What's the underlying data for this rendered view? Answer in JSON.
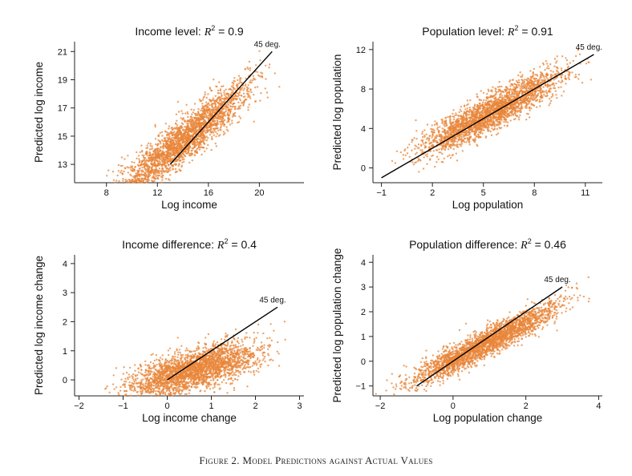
{
  "figure": {
    "caption": "Figure 2. Model Predictions against Actual Values"
  },
  "point_color": "#E8863A",
  "line_color": "#000000",
  "chart_data": [
    {
      "type": "scatter",
      "title_prefix": "Income level: ",
      "r2_symbol": "R",
      "r2_sup": "2",
      "r2_value": "= 0.9",
      "xlabel": "Log income",
      "ylabel": "Predicted log income",
      "xlim": [
        5.5,
        23.5
      ],
      "ylim": [
        11.7,
        21.7
      ],
      "xticks": [
        8,
        12,
        16,
        20
      ],
      "yticks": [
        13,
        15,
        17,
        19,
        21
      ],
      "xtick_labels": [
        "8",
        "12",
        "16",
        "20"
      ],
      "ytick_labels": [
        "13",
        "15",
        "17",
        "19",
        "21"
      ],
      "reference_line": {
        "label": "45 deg.",
        "x": [
          13,
          21
        ],
        "y": [
          13,
          21
        ]
      },
      "cloud": {
        "x_min": 6.5,
        "x_max": 21.5,
        "slope": 0.72,
        "intercept": 4.6,
        "spread": 0.8,
        "points": 2600
      }
    },
    {
      "type": "scatter",
      "title_prefix": "Population level: ",
      "r2_symbol": "R",
      "r2_sup": "2",
      "r2_value": "= 0.91",
      "xlabel": "Log population",
      "ylabel": "Predicted log population",
      "xlim": [
        -1.5,
        12
      ],
      "ylim": [
        -1.5,
        12.8
      ],
      "xticks": [
        -1,
        2,
        5,
        8,
        11
      ],
      "yticks": [
        0,
        4,
        8,
        12
      ],
      "xtick_labels": [
        "−1",
        "2",
        "5",
        "8",
        "11"
      ],
      "ytick_labels": [
        "0",
        "4",
        "8",
        "12"
      ],
      "reference_line": {
        "label": "45 deg.",
        "x": [
          -1,
          11.5
        ],
        "y": [
          -1,
          11.5
        ]
      },
      "cloud": {
        "x_min": -0.5,
        "x_max": 11.5,
        "slope": 0.9,
        "intercept": 0.7,
        "spread": 0.9,
        "points": 2600
      }
    },
    {
      "type": "scatter",
      "title_prefix": "Income difference: ",
      "r2_symbol": "R",
      "r2_sup": "2",
      "r2_value": "= 0.4",
      "xlabel": "Log income change",
      "ylabel": "Predicted log income change",
      "xlim": [
        -2.1,
        3.1
      ],
      "ylim": [
        -0.55,
        4.3
      ],
      "xticks": [
        -2,
        -1,
        0,
        1,
        2,
        3
      ],
      "yticks": [
        0,
        1,
        2,
        3,
        4
      ],
      "xtick_labels": [
        "−2",
        "−1",
        "0",
        "1",
        "2",
        "3"
      ],
      "ytick_labels": [
        "0",
        "1",
        "2",
        "3",
        "4"
      ],
      "reference_line": {
        "label": "45 deg.",
        "x": [
          0,
          2.5
        ],
        "y": [
          0,
          2.5
        ]
      },
      "cloud": {
        "x_min": -1.5,
        "x_max": 2.8,
        "slope": 0.4,
        "intercept": 0.1,
        "spread": 0.35,
        "points": 2600
      }
    },
    {
      "type": "scatter",
      "title_prefix": "Population difference: ",
      "r2_symbol": "R",
      "r2_sup": "2",
      "r2_value": "= 0.46",
      "xlabel": "Log population change",
      "ylabel": "Predicted log population change",
      "xlim": [
        -2.2,
        4.1
      ],
      "ylim": [
        -1.4,
        4.3
      ],
      "xticks": [
        -2,
        0,
        2,
        4
      ],
      "yticks": [
        -1,
        0,
        1,
        2,
        3,
        4
      ],
      "xtick_labels": [
        "−2",
        "0",
        "2",
        "4"
      ],
      "ytick_labels": [
        "−1",
        "0",
        "1",
        "2",
        "3",
        "4"
      ],
      "reference_line": {
        "label": "45 deg.",
        "x": [
          -1,
          3
        ],
        "y": [
          -1,
          3
        ]
      },
      "cloud": {
        "x_min": -2,
        "x_max": 3.8,
        "slope": 0.75,
        "intercept": 0.05,
        "spread": 0.28,
        "points": 2600
      }
    }
  ]
}
